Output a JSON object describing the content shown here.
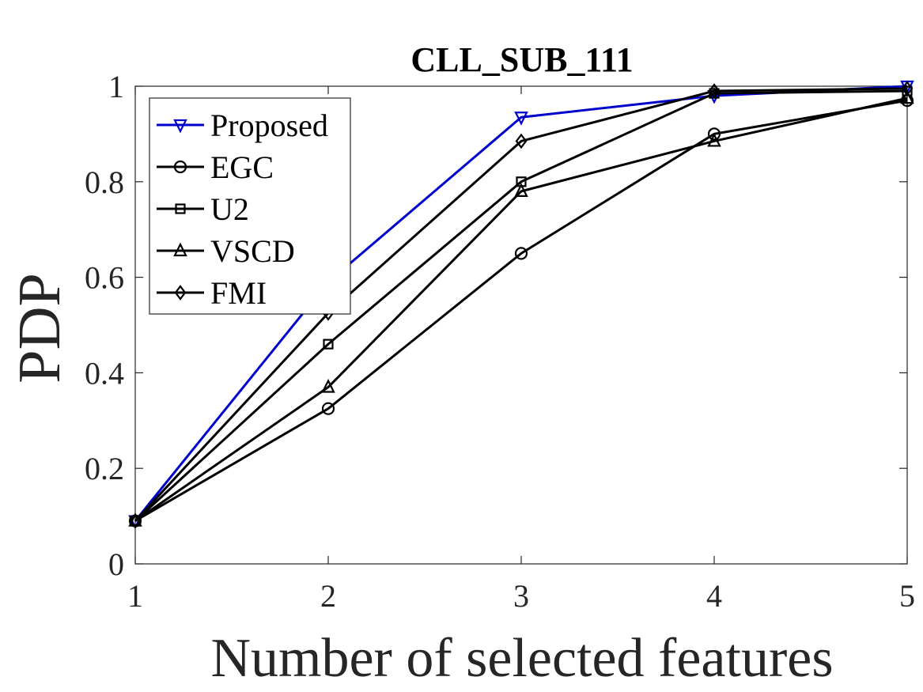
{
  "chart_data": {
    "type": "line",
    "title": "CLL_SUB_111",
    "xlabel": "Number of selected features",
    "ylabel": "PDP",
    "x": [
      1,
      2,
      3,
      4,
      5
    ],
    "xlim": [
      1,
      5
    ],
    "ylim": [
      0,
      1
    ],
    "xticks": [
      "1",
      "2",
      "3",
      "4",
      "5"
    ],
    "yticks": [
      "0",
      "0.2",
      "0.4",
      "0.6",
      "0.8",
      "1"
    ],
    "grid": false,
    "legend_position": "top-left",
    "series": [
      {
        "name": "Proposed",
        "marker": "triangle-down",
        "color": "#0000CD",
        "values": [
          0.09,
          0.59,
          0.935,
          0.98,
          1.0
        ]
      },
      {
        "name": "EGC",
        "marker": "circle",
        "color": "#000000",
        "values": [
          0.09,
          0.325,
          0.65,
          0.9,
          0.97
        ]
      },
      {
        "name": "U2",
        "marker": "square",
        "color": "#000000",
        "values": [
          0.09,
          0.46,
          0.8,
          0.985,
          0.99
        ]
      },
      {
        "name": "VSCD",
        "marker": "triangle-up",
        "color": "#000000",
        "values": [
          0.09,
          0.37,
          0.78,
          0.885,
          0.975
        ]
      },
      {
        "name": "FMI",
        "marker": "diamond",
        "color": "#000000",
        "values": [
          0.09,
          0.525,
          0.885,
          0.99,
          0.995
        ]
      }
    ]
  }
}
